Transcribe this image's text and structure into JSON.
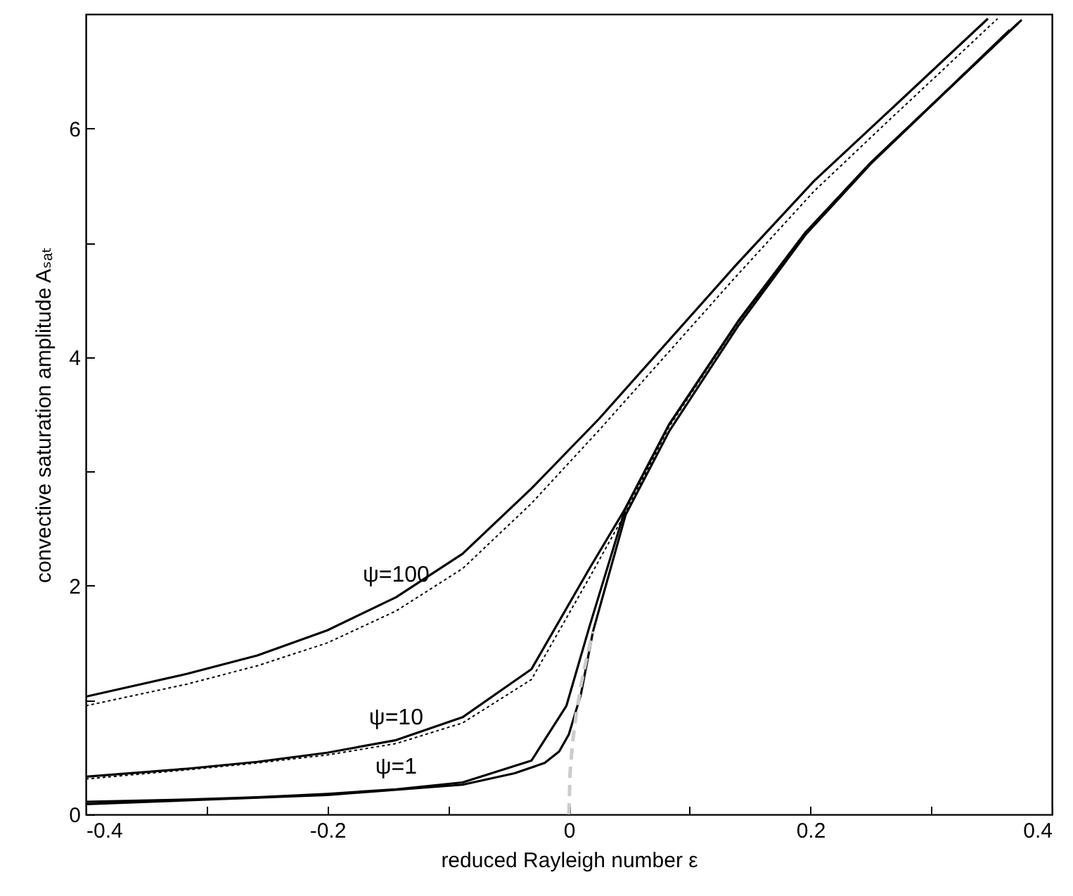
{
  "chart_data": {
    "type": "line",
    "xlabel": "reduced Rayleigh number ε",
    "ylabel": "convective saturation amplitude Aₛₐₜ",
    "xlim": [
      -0.4,
      0.4
    ],
    "xticks": [
      -0.4,
      {
        "value": -0.3,
        "label": null
      },
      -0.2,
      {
        "value": -0.1,
        "label": null
      },
      0,
      {
        "value": 0.1,
        "label": null
      },
      0.2,
      {
        "value": 0.3,
        "label": null
      },
      0.4
    ],
    "ylim": [
      0,
      7
    ],
    "yticks": [
      0,
      {
        "value": 1,
        "label": null
      },
      2,
      {
        "value": 3,
        "label": null
      },
      4,
      {
        "value": 5,
        "label": null
      },
      6
    ],
    "grid": false,
    "marker": "none",
    "series": [
      {
        "name": "ψ=100",
        "color": "#000000",
        "line_style": "solid",
        "x": [
          -0.4,
          -0.316,
          -0.258,
          -0.2,
          -0.143,
          -0.088,
          -0.031,
          0.025,
          0.138,
          0.203,
          0.265,
          0.347
        ],
        "values": [
          1.03,
          1.23,
          1.39,
          1.61,
          1.9,
          2.28,
          2.85,
          3.46,
          4.8,
          5.54,
          6.15,
          6.96
        ]
      },
      {
        "color": "#000000",
        "line_style": "dotted",
        "x": [
          -0.4,
          -0.316,
          -0.258,
          -0.2,
          -0.143,
          -0.088,
          -0.031,
          0.025,
          0.138,
          0.203,
          0.265,
          0.355
        ],
        "values": [
          0.95,
          1.14,
          1.3,
          1.5,
          1.78,
          2.15,
          2.72,
          3.36,
          4.7,
          5.45,
          6.07,
          6.96
        ]
      },
      {
        "name": "ψ=10",
        "color": "#000000",
        "line_style": "solid",
        "x": [
          -0.4,
          -0.316,
          -0.258,
          -0.2,
          -0.143,
          -0.088,
          -0.031,
          0.017,
          0.047,
          0.083,
          0.14,
          0.196,
          0.25,
          0.372
        ],
        "values": [
          0.33,
          0.4,
          0.46,
          0.54,
          0.65,
          0.85,
          1.27,
          2.15,
          2.68,
          3.41,
          4.31,
          5.09,
          5.7,
          6.92
        ]
      },
      {
        "color": "#000000",
        "line_style": "dotted",
        "x": [
          -0.4,
          -0.316,
          -0.258,
          -0.2,
          -0.143,
          -0.088,
          -0.031,
          0.017,
          0.047,
          0.083,
          0.14,
          0.196,
          0.25,
          0.368
        ],
        "values": [
          0.31,
          0.39,
          0.45,
          0.52,
          0.62,
          0.8,
          1.18,
          2.07,
          2.64,
          3.39,
          4.3,
          5.08,
          5.7,
          6.88
        ]
      },
      {
        "name": "ψ=1",
        "color": "#000000",
        "line_style": "solid",
        "x": [
          -0.4,
          -0.316,
          -0.258,
          -0.2,
          -0.143,
          -0.088,
          -0.031,
          -0.002,
          0.017,
          0.047,
          0.083,
          0.14,
          0.196,
          0.25,
          0.375
        ],
        "values": [
          0.11,
          0.13,
          0.15,
          0.18,
          0.22,
          0.28,
          0.47,
          0.95,
          1.64,
          2.68,
          3.41,
          4.31,
          5.09,
          5.7,
          6.95
        ]
      },
      {
        "color": "#000000",
        "line_style": "solid",
        "x": [
          -0.4,
          -0.2,
          -0.088,
          -0.045,
          -0.02,
          -0.008,
          0.0,
          0.01,
          0.02,
          0.047,
          0.083,
          0.14,
          0.196,
          0.25,
          0.365
        ],
        "values": [
          0.09,
          0.17,
          0.26,
          0.36,
          0.45,
          0.55,
          0.7,
          1.05,
          1.6,
          2.62,
          3.35,
          4.27,
          5.07,
          5.69,
          6.86
        ]
      },
      {
        "color": "#cccccc",
        "line_style": "dashed",
        "x": [
          0.0,
          0.001,
          0.003,
          0.006,
          0.01,
          0.015,
          0.02
        ],
        "values": [
          0.0,
          0.36,
          0.62,
          0.87,
          1.13,
          1.38,
          1.6
        ]
      }
    ]
  }
}
